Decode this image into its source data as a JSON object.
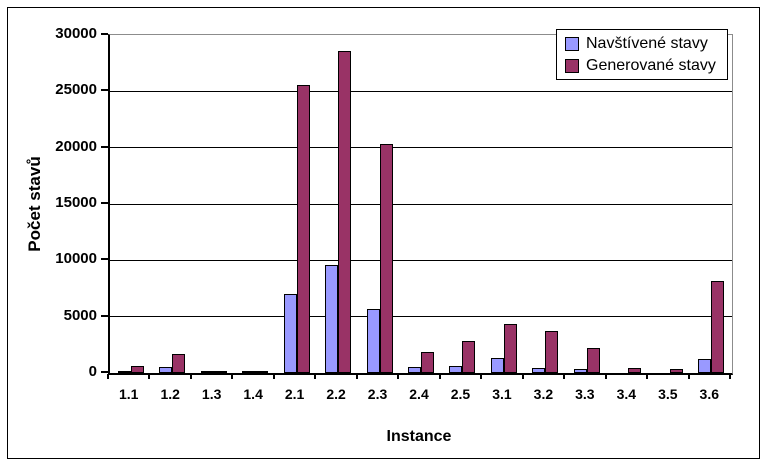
{
  "window": {
    "background_color": "#ffffff",
    "frame_border_color": "#000000"
  },
  "chart_data": {
    "type": "bar",
    "title": "",
    "xlabel": "Instance",
    "ylabel": "Počet stavů",
    "categories": [
      "1.1",
      "1.2",
      "1.3",
      "1.4",
      "2.1",
      "2.2",
      "2.3",
      "2.4",
      "2.5",
      "3.1",
      "3.2",
      "3.3",
      "3.4",
      "3.5",
      "3.6"
    ],
    "series": [
      {
        "name": "Navštívené stavy",
        "color": "#9999FF",
        "values": [
          150,
          500,
          50,
          50,
          7000,
          9600,
          5700,
          500,
          650,
          1350,
          400,
          350,
          0,
          0,
          1200
        ]
      },
      {
        "name": "Generované stavy",
        "color": "#993366",
        "values": [
          650,
          1700,
          150,
          150,
          25600,
          28600,
          20300,
          1900,
          2800,
          4350,
          3750,
          2250,
          400,
          350,
          8150
        ]
      }
    ],
    "ylim": [
      0,
      30000
    ],
    "yticks": [
      0,
      5000,
      10000,
      15000,
      20000,
      25000,
      30000
    ],
    "grid": true,
    "gridline_color": "#000000",
    "plot_border_color": "#8c8c8c",
    "bar_border_color": "#000000",
    "legend_position": "top-right"
  }
}
